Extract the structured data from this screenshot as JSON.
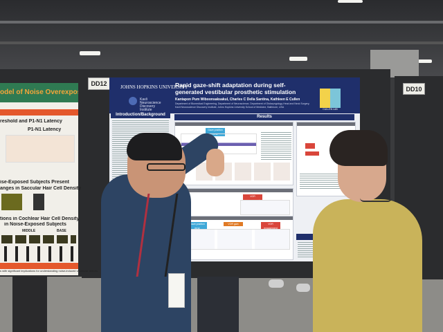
{
  "signs": {
    "left_board": "DD12",
    "right_board": "DD10"
  },
  "left_poster": {
    "title": "odel of Noise Overexposure",
    "line1": "reshold and P1-N1 Latency",
    "line2": "P1-N1 Latency",
    "line3": "ise-Exposed Subjects Present",
    "line4": "anges in Saccular Hair Cell Density",
    "line5": "tions in Cochlear Hair Cell Density",
    "line6": "in Noise-Exposed Subjects",
    "regions": [
      "MIDDLE",
      "BASE"
    ],
    "footer": "s with significant implications for understanding noise-induced vestibular deficits."
  },
  "main_poster": {
    "institution": "JOHNS HOPKINS UNIVERSITY",
    "institute": "Kavli Neuroscience Discovery Institute",
    "title": "Rapid gaze-shift adaptation during self-generated vestibular prosthetic stimulation",
    "authors": "Kantapon Pum Wiboonsaksakul, Charles C Della Santina, Kathleen E Cullen",
    "affiliations": "Department of Biomedical Engineering, Department of Neuroscience, Department of Otolaryngology-Head and Neck Surgery, Kavli Neuroscience Discovery Institute, Johns Hopkins University School of Medicine, Baltimore, USA",
    "lab_logo": "CULLEN LAB",
    "sections": {
      "intro": "Introduction/Background",
      "results": "Results",
      "conclusions": "Conclusions"
    },
    "tags": [
      "Gaze position error",
      "VOR engagement",
      "Gaze position error",
      "VOR gain",
      "VOR engagement"
    ]
  }
}
